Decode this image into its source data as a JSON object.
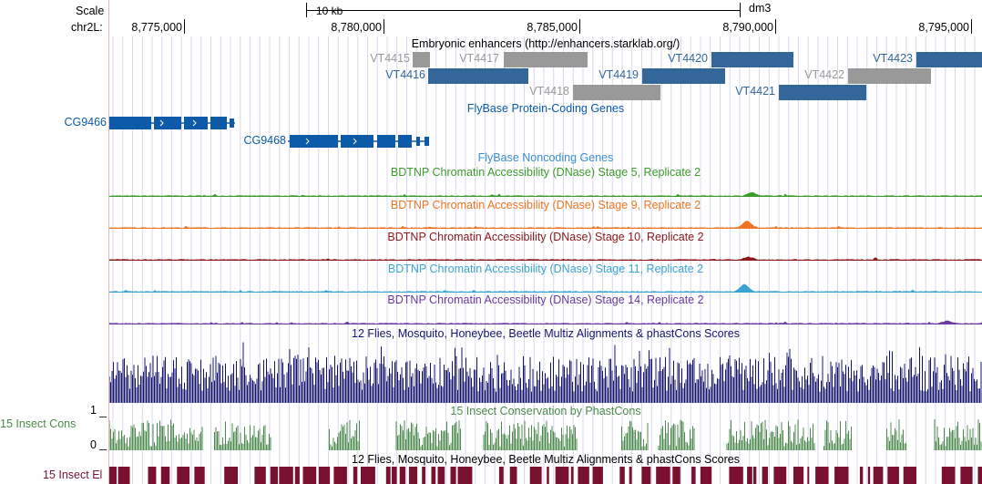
{
  "ruler": {
    "scale_label": "Scale",
    "chrom_label": "chr2L:",
    "scalebar_text": "10 kb",
    "assembly": "dm3",
    "ticks": [
      "8,775,000",
      "8,780,000",
      "8,785,000",
      "8,790,000",
      "8,795,000"
    ]
  },
  "enhancers": {
    "title": "Embryonic enhancers (http://enhancers.starklab.org/)",
    "items": [
      {
        "label": "VT4415",
        "color": "#999999"
      },
      {
        "label": "VT4416",
        "color": "#336699"
      },
      {
        "label": "VT4417",
        "color": "#999999"
      },
      {
        "label": "VT4418",
        "color": "#999999"
      },
      {
        "label": "VT4419",
        "color": "#336699"
      },
      {
        "label": "VT4420",
        "color": "#336699"
      },
      {
        "label": "VT4421",
        "color": "#336699"
      },
      {
        "label": "VT4422",
        "color": "#999999"
      },
      {
        "label": "VT4423",
        "color": "#336699"
      }
    ]
  },
  "genes": {
    "title": "FlyBase Protein-Coding Genes",
    "color": "#0c5aa8",
    "items": [
      "CG9466",
      "CG9468"
    ]
  },
  "noncoding": {
    "title": "FlyBase Noncoding Genes"
  },
  "dnase": [
    {
      "title": "BDTNP Chromatin Accessibility (DNase) Stage 5, Replicate 2",
      "color": "#3d9a2c"
    },
    {
      "title": "BDTNP Chromatin Accessibility (DNase) Stage 9, Replicate 2",
      "color": "#ee7622"
    },
    {
      "title": "BDTNP Chromatin Accessibility (DNase) Stage 10, Replicate 2",
      "color": "#8b1a1a"
    },
    {
      "title": "BDTNP Chromatin Accessibility (DNase) Stage 11, Replicate 2",
      "color": "#3aa5d4"
    },
    {
      "title": "BDTNP Chromatin Accessibility (DNase) Stage 14, Replicate 2",
      "color": "#6a3aa0"
    }
  ],
  "multiz": {
    "title": "12 Flies, Mosquito, Honeybee, Beetle Multiz Alignments & phastCons Scores",
    "color": "#14146e"
  },
  "phastcons": {
    "title": "15 Insect Conservation by PhastCons",
    "side_label": "15 Insect Cons",
    "axis_max": "1",
    "axis_min": "0",
    "color": "#4c8a4c"
  },
  "elements": {
    "title": "12 Flies, Mosquito, Honeybee, Beetle Multiz Alignments & phastCons Scores",
    "side_label": "15 Insect El",
    "color": "#7a1030"
  }
}
